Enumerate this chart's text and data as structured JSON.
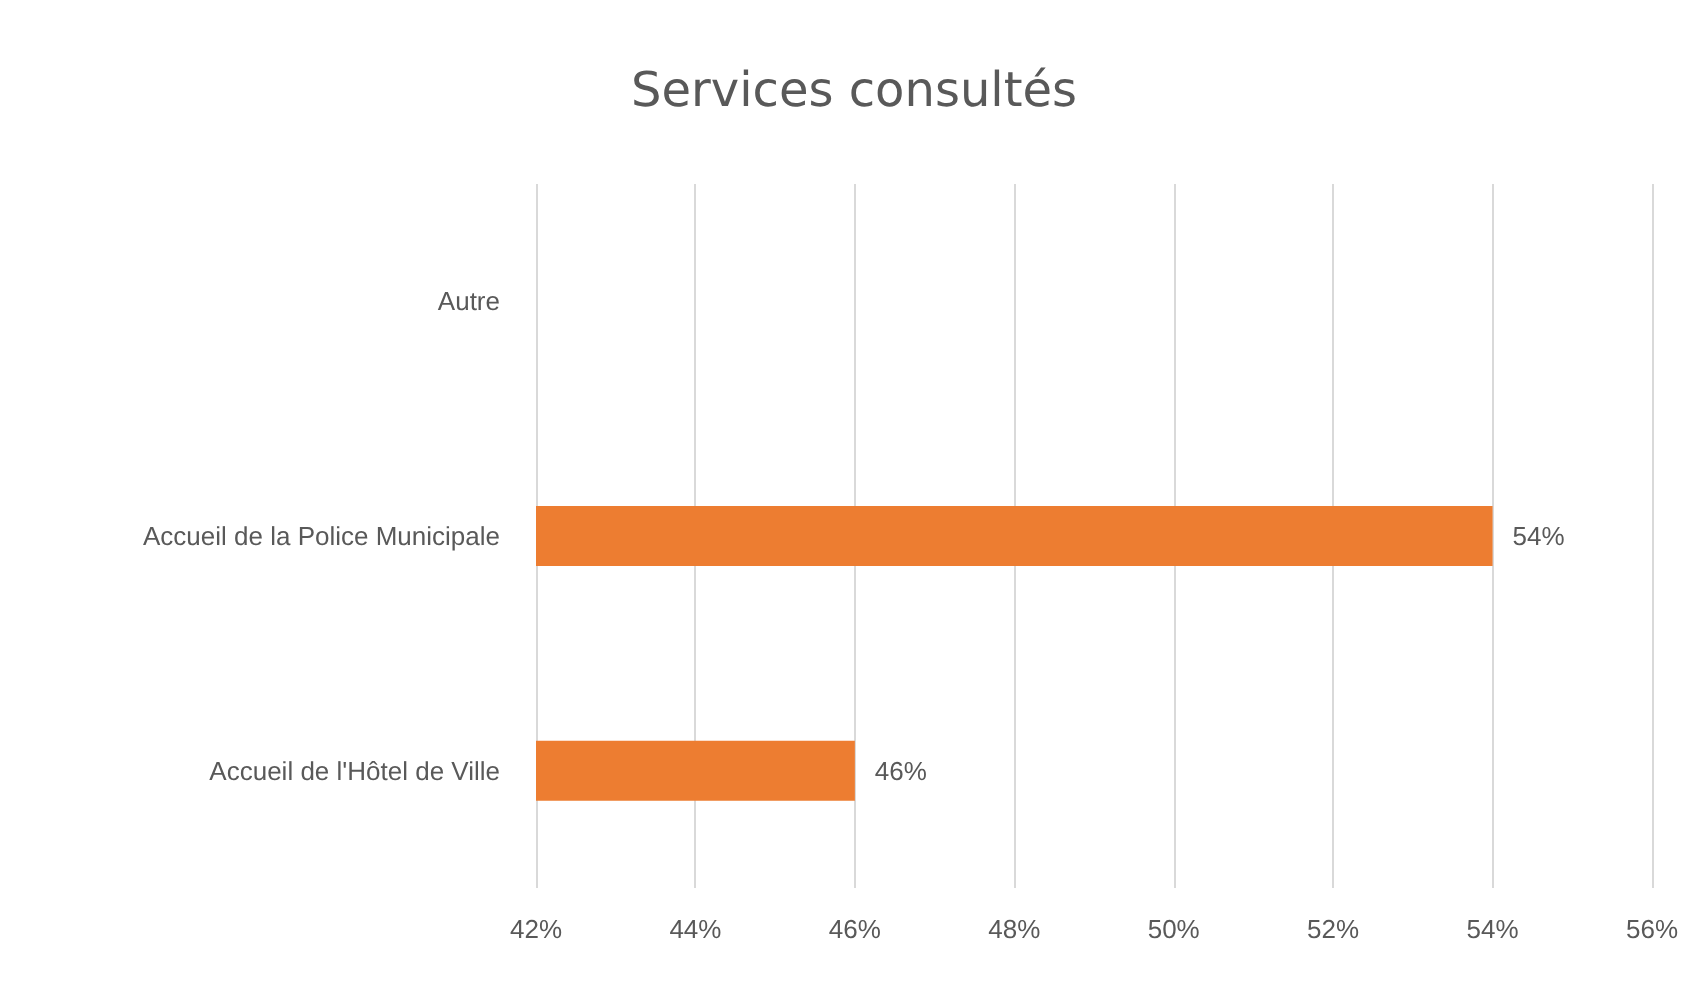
{
  "chart_data": {
    "type": "bar",
    "orientation": "horizontal",
    "title": "Services consultés",
    "categories": [
      "Autre",
      "Accueil de la Police Municipale",
      "Accueil de l'Hôtel de Ville"
    ],
    "values": [
      null,
      54,
      46
    ],
    "color": "#ed7d31",
    "value_labels": [
      null,
      "54%",
      "46%"
    ],
    "xlim": [
      42,
      56
    ],
    "xticks": [
      {
        "value": 42,
        "label": "42%"
      },
      {
        "value": 44,
        "label": "44%"
      },
      {
        "value": 46,
        "label": "46%"
      },
      {
        "value": 48,
        "label": "48%"
      },
      {
        "value": 50,
        "label": "50%"
      },
      {
        "value": 52,
        "label": "52%"
      },
      {
        "value": 54,
        "label": "54%"
      },
      {
        "value": 56,
        "label": "56%"
      }
    ],
    "grid": "x"
  }
}
